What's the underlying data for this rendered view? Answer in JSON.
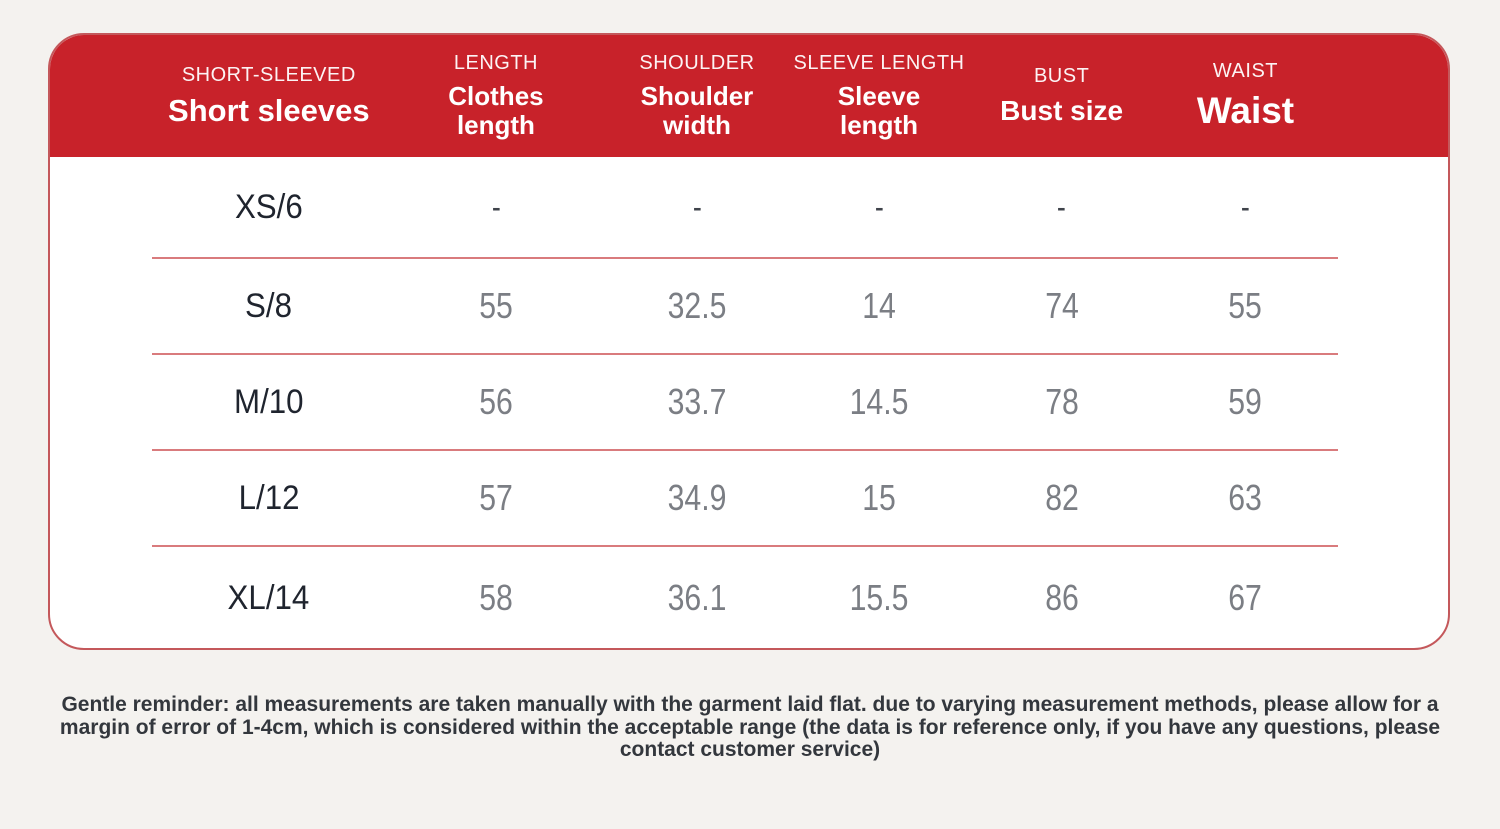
{
  "colors": {
    "header_red": "#c8222a",
    "separator_pink": "#d97b7d",
    "card_border": "#c4585b",
    "page_background": "#f4f2ef",
    "size_text": "#1f242e",
    "value_text": "#7b7e84",
    "reminder_text": "#33373d"
  },
  "table": {
    "columns": [
      {
        "top": "SHORT-SLEEVED",
        "label": "Short sleeves"
      },
      {
        "top": "LENGTH",
        "label": "Clothes\nlength"
      },
      {
        "top": "SHOULDER",
        "label": "Shoulder\nwidth"
      },
      {
        "top": "SLEEVE LENGTH",
        "label": "Sleeve\nlength"
      },
      {
        "top": "BUST",
        "label": "Bust size"
      },
      {
        "top": "WAIST",
        "label": "Waist"
      }
    ],
    "rows": [
      {
        "size": "XS/6",
        "values": [
          "-",
          "-",
          "-",
          "-",
          "-"
        ]
      },
      {
        "size": "S/8",
        "values": [
          "55",
          "32.5",
          "14",
          "74",
          "55"
        ]
      },
      {
        "size": "M/10",
        "values": [
          "56",
          "33.7",
          "14.5",
          "78",
          "59"
        ]
      },
      {
        "size": "L/12",
        "values": [
          "57",
          "34.9",
          "15",
          "82",
          "63"
        ]
      },
      {
        "size": "XL/14",
        "values": [
          "58",
          "36.1",
          "15.5",
          "86",
          "67"
        ]
      }
    ]
  },
  "reminder": "Gentle reminder: all measurements are taken manually with the garment laid flat. due to varying measurement methods, please allow for a margin of error of 1-4cm, which is considered within the acceptable range (the data is for reference only, if you have any questions, please contact customer service)"
}
